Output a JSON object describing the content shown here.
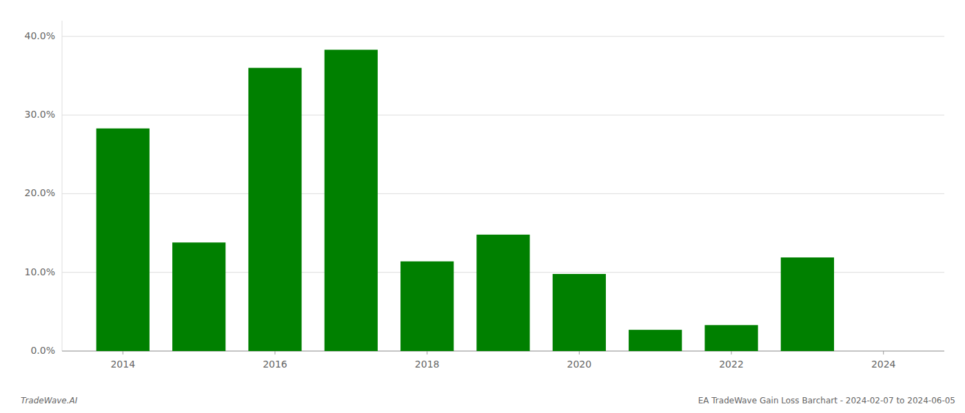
{
  "chart_data": {
    "type": "bar",
    "x": [
      2014,
      2015,
      2016,
      2017,
      2018,
      2019,
      2020,
      2021,
      2022,
      2023,
      2024
    ],
    "values": [
      0.283,
      0.138,
      0.36,
      0.383,
      0.114,
      0.148,
      0.098,
      0.027,
      0.033,
      0.119,
      0.0
    ],
    "color": "#008000",
    "xlim": [
      2013.2,
      2024.8
    ],
    "xticks": [
      2014,
      2016,
      2018,
      2020,
      2022,
      2024
    ],
    "ylim": [
      0,
      0.42
    ],
    "yticks": [
      {
        "value": 0.0,
        "label": "0.0%"
      },
      {
        "value": 0.1,
        "label": "10.0%"
      },
      {
        "value": 0.2,
        "label": "20.0%"
      },
      {
        "value": 0.3,
        "label": "30.0%"
      },
      {
        "value": 0.4,
        "label": "40.0%"
      }
    ],
    "grid": true,
    "annotations": [
      "TradeWave.AI",
      "EA TradeWave Gain Loss Barchart - 2024-02-07 to 2024-06-05"
    ]
  }
}
